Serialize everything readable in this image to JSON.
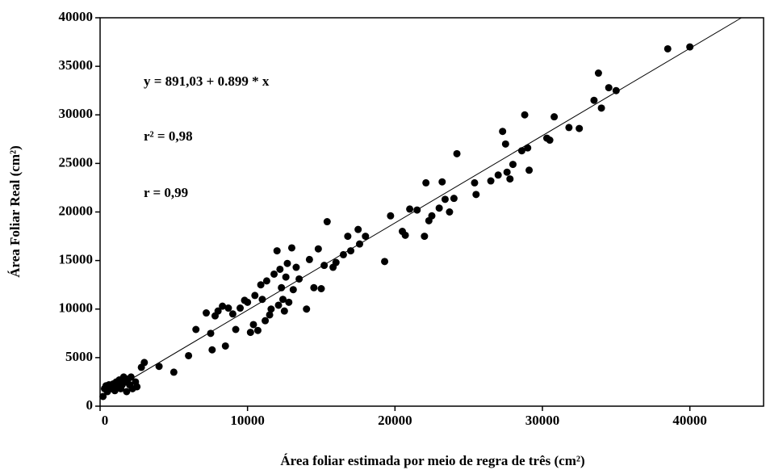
{
  "chart_data": {
    "type": "scatter",
    "x_label": "Área foliar estimada por meio de regra de três (cm²)",
    "y_label": "Área Foliar Real (cm²)",
    "annotations": [
      "y = 891,03 + 0.899 * x",
      "r² = 0,98",
      "r = 0,99"
    ],
    "trend_line": {
      "intercept": 891.03,
      "slope": 0.899
    },
    "color": "#000000",
    "xlim": [
      0,
      45000
    ],
    "xticks": [
      0,
      10000,
      20000,
      30000,
      40000
    ],
    "ylim": [
      0,
      40000
    ],
    "yticks": [
      0,
      5000,
      10000,
      15000,
      20000,
      25000,
      30000,
      35000,
      40000
    ],
    "grid": false,
    "x": [
      200,
      300,
      400,
      500,
      600,
      700,
      800,
      900,
      1000,
      1100,
      1200,
      1300,
      1400,
      1500,
      1600,
      1700,
      1800,
      1900,
      2000,
      2100,
      2200,
      2400,
      2500,
      2800,
      3000,
      4000,
      5000,
      6000,
      6500,
      7200,
      7500,
      7600,
      7800,
      8000,
      8300,
      8500,
      8700,
      9000,
      9200,
      9500,
      9800,
      10000,
      10200,
      10400,
      10500,
      10700,
      10900,
      11000,
      11200,
      11300,
      11500,
      11600,
      11800,
      12000,
      12100,
      12200,
      12300,
      12400,
      12500,
      12600,
      12700,
      12800,
      13000,
      13100,
      13300,
      13500,
      14000,
      14200,
      14500,
      14800,
      15000,
      15200,
      15400,
      15800,
      16000,
      16500,
      16800,
      17000,
      17500,
      17600,
      18000,
      19300,
      19700,
      20500,
      20700,
      21000,
      21500,
      22000,
      22100,
      22300,
      22500,
      23000,
      23200,
      23400,
      23700,
      24000,
      24200,
      25400,
      25500,
      26500,
      27000,
      27300,
      27500,
      27600,
      27800,
      28000,
      28600,
      28800,
      29000,
      29100,
      30300,
      30500,
      30800,
      31800,
      32500,
      33500,
      33800,
      34000,
      34500,
      35000,
      38500,
      40000
    ],
    "y": [
      1000,
      1800,
      2100,
      1500,
      2200,
      1800,
      2000,
      2300,
      1600,
      2500,
      2000,
      2700,
      1800,
      2200,
      3000,
      2500,
      1500,
      2800,
      2200,
      3000,
      1800,
      2500,
      2000,
      4000,
      4500,
      4100,
      3500,
      5200,
      7900,
      9600,
      7500,
      5800,
      9300,
      9800,
      10300,
      6200,
      10100,
      9500,
      7900,
      10100,
      10900,
      10700,
      7600,
      8400,
      11400,
      7800,
      12500,
      11000,
      8800,
      12900,
      9400,
      10000,
      13600,
      16000,
      10400,
      14100,
      12200,
      11000,
      9800,
      13300,
      14700,
      10700,
      16300,
      12000,
      14300,
      13100,
      10000,
      15100,
      12200,
      16200,
      12100,
      14500,
      19000,
      14300,
      14800,
      15600,
      17500,
      16000,
      18200,
      16700,
      17500,
      14900,
      19600,
      18000,
      17600,
      20300,
      20200,
      17500,
      23000,
      19100,
      19600,
      20400,
      23100,
      21300,
      20000,
      21400,
      26000,
      23000,
      21800,
      23200,
      23800,
      28300,
      27000,
      24100,
      23400,
      24900,
      26300,
      30000,
      26600,
      24300,
      27600,
      27400,
      29800,
      28700,
      28600,
      31500,
      34300,
      30700,
      32800,
      32500,
      36800,
      37000
    ]
  }
}
